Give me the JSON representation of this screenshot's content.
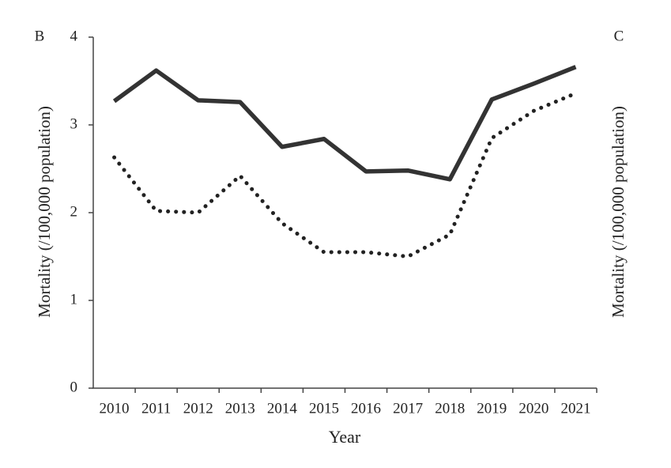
{
  "chart_data": {
    "type": "line",
    "panel_labels": [
      "B",
      "C"
    ],
    "xlabel": "Year",
    "ylabel": "Mortality (/100,000 population)",
    "right_ylabel": "Mortality (/100,000 population)",
    "categories": [
      "2010",
      "2011",
      "2012",
      "2013",
      "2014",
      "2015",
      "2016",
      "2017",
      "2018",
      "2019",
      "2020",
      "2021"
    ],
    "series": [
      {
        "color": "#333333",
        "style": "solid",
        "values": [
          3.27,
          3.62,
          3.28,
          3.26,
          2.75,
          2.84,
          2.47,
          2.48,
          2.38,
          3.29,
          3.47,
          3.66
        ]
      },
      {
        "color": "#222222",
        "style": "dotted",
        "values": [
          2.63,
          2.02,
          2.0,
          2.42,
          1.88,
          1.55,
          1.55,
          1.5,
          1.75,
          2.85,
          3.16,
          3.36
        ]
      }
    ],
    "ylim": [
      0,
      4
    ],
    "yticks": [
      0,
      1,
      2,
      3,
      4
    ],
    "grid": false
  }
}
